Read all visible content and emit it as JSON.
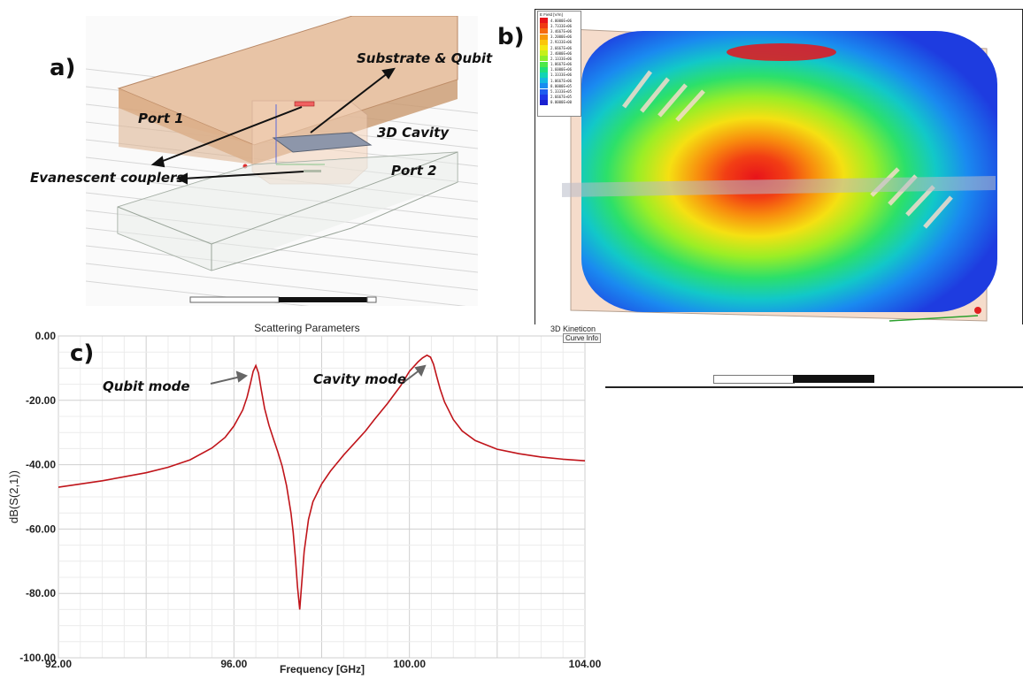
{
  "panel_a": {
    "letter": "a)",
    "labels": {
      "substrate_qubit": "Substrate & Qubit",
      "port1": "Port 1",
      "cavity": "3D Cavity",
      "port2": "Port 2",
      "couplers": "Evanescent couplers"
    }
  },
  "panel_b": {
    "letter": "b)",
    "legend_title": "E Field [V/m]",
    "legend_values": [
      "4.0000E+06",
      "3.7333E+06",
      "3.4667E+06",
      "3.2000E+06",
      "2.9333E+06",
      "2.6667E+06",
      "2.4000E+06",
      "2.1333E+06",
      "1.8667E+06",
      "1.6000E+06",
      "1.3333E+06",
      "1.0667E+06",
      "8.0000E+05",
      "5.3333E+05",
      "2.6667E+05",
      "0.0000E+00"
    ],
    "legend_colors": [
      "#e8141a",
      "#f03a14",
      "#f56a10",
      "#f8990c",
      "#fbc60a",
      "#f4e810",
      "#c5f01a",
      "#8cef2a",
      "#4de84a",
      "#1ee07a",
      "#12d4b4",
      "#14b8e0",
      "#1a8cf0",
      "#1e5ef0",
      "#1e38e8",
      "#1a20d0"
    ],
    "app_label": "3D Kineticon"
  },
  "panel_c": {
    "letter": "c)",
    "curve_info_label": "Curve Info",
    "annotations": {
      "qubit_mode": "Qubit mode",
      "cavity_mode": "Cavity mode"
    }
  },
  "chart_data": {
    "type": "line",
    "title": "Scattering Parameters",
    "xlabel": "Frequency [GHz]",
    "ylabel": "dB(S(2,1))",
    "xlim": [
      92,
      104
    ],
    "ylim": [
      -100,
      0
    ],
    "x_ticks": [
      "92.00",
      "96.00",
      "100.00",
      "104.00"
    ],
    "y_ticks": [
      "0.00",
      "-20.00",
      "-40.00",
      "-60.00",
      "-80.00",
      "-100.00"
    ],
    "series_color": "#c0141a",
    "grid": true,
    "series": [
      {
        "x": [
          92.0,
          93.0,
          94.0,
          94.5,
          95.0,
          95.5,
          95.8,
          96.0,
          96.2,
          96.3,
          96.38,
          96.44,
          96.5,
          96.56,
          96.62,
          96.7,
          96.8,
          96.9,
          97.0,
          97.1,
          97.2,
          97.3,
          97.35,
          97.4,
          97.45,
          97.5,
          97.55,
          97.6,
          97.7,
          97.8,
          98.0,
          98.2,
          98.5,
          98.8,
          99.0,
          99.2,
          99.5,
          99.8,
          100.0,
          100.2,
          100.3,
          100.4,
          100.48,
          100.55,
          100.62,
          100.7,
          100.8,
          101.0,
          101.2,
          101.5,
          102.0,
          102.5,
          103.0,
          103.5,
          104.0
        ],
        "y": [
          -47.0,
          -45.0,
          -42.5,
          -40.8,
          -38.5,
          -34.8,
          -31.5,
          -28.0,
          -23.0,
          -19.0,
          -14.5,
          -11.0,
          -9.2,
          -11.5,
          -16.5,
          -22.5,
          -27.8,
          -32.0,
          -36.0,
          -40.5,
          -46.5,
          -55.0,
          -61.0,
          -69.0,
          -78.0,
          -85.0,
          -76.0,
          -67.0,
          -57.0,
          -51.5,
          -46.0,
          -42.0,
          -37.0,
          -32.5,
          -29.5,
          -26.0,
          -21.0,
          -15.5,
          -11.0,
          -8.0,
          -6.8,
          -6.0,
          -6.6,
          -8.8,
          -12.5,
          -16.5,
          -20.5,
          -26.0,
          -29.5,
          -32.5,
          -35.2,
          -36.6,
          -37.6,
          -38.3,
          -38.8
        ]
      }
    ]
  }
}
